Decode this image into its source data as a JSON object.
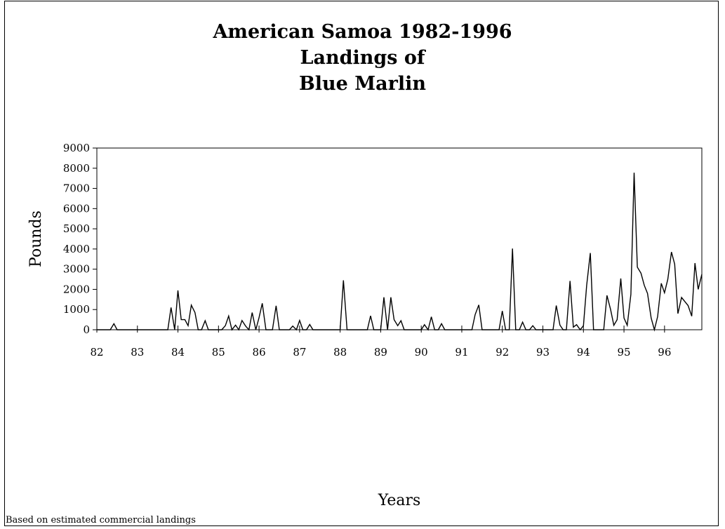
{
  "chart_data": {
    "type": "line",
    "title": [
      "American Samoa 1982-1996",
      "Landings of",
      "Blue Marlin"
    ],
    "xlabel": "Years",
    "ylabel": "Pounds",
    "xlim": [
      82,
      96.92
    ],
    "ylim": [
      0,
      9000
    ],
    "x_ticks": [
      "82",
      "83",
      "84",
      "85",
      "86",
      "87",
      "88",
      "89",
      "90",
      "91",
      "92",
      "93",
      "94",
      "95",
      "96"
    ],
    "y_ticks": [
      "0",
      "1000",
      "2000",
      "3000",
      "4000",
      "5000",
      "6000",
      "7000",
      "8000",
      "9000"
    ],
    "grid": false,
    "legend": "none",
    "line_color": "#000000",
    "series": [
      {
        "x": [
          82.0,
          82.08,
          82.17,
          82.25,
          82.33,
          82.42,
          82.5,
          82.58,
          82.67,
          82.75,
          82.83,
          82.92,
          83.0,
          83.08,
          83.17,
          83.25,
          83.33,
          83.42,
          83.5,
          83.58,
          83.67,
          83.75,
          83.83,
          83.92,
          84.0,
          84.08,
          84.17,
          84.25,
          84.33,
          84.42,
          84.5,
          84.58,
          84.67,
          84.75,
          84.83,
          84.92,
          85.0,
          85.08,
          85.17,
          85.25,
          85.33,
          85.42,
          85.5,
          85.58,
          85.67,
          85.75,
          85.83,
          85.92,
          86.0,
          86.08,
          86.17,
          86.25,
          86.33,
          86.42,
          86.5,
          86.58,
          86.67,
          86.75,
          86.83,
          86.92,
          87.0,
          87.08,
          87.17,
          87.25,
          87.33,
          87.42,
          87.5,
          87.58,
          87.67,
          87.75,
          87.83,
          87.92,
          88.0,
          88.08,
          88.17,
          88.25,
          88.33,
          88.42,
          88.5,
          88.58,
          88.67,
          88.75,
          88.83,
          88.92,
          89.0,
          89.08,
          89.17,
          89.25,
          89.33,
          89.42,
          89.5,
          89.58,
          89.67,
          89.75,
          89.83,
          89.92,
          90.0,
          90.08,
          90.17,
          90.25,
          90.33,
          90.42,
          90.5,
          90.58,
          90.67,
          90.75,
          90.83,
          90.92,
          91.0,
          91.08,
          91.17,
          91.25,
          91.33,
          91.42,
          91.5,
          91.58,
          91.67,
          91.75,
          91.83,
          91.92,
          92.0,
          92.08,
          92.17,
          92.25,
          92.33,
          92.42,
          92.5,
          92.58,
          92.67,
          92.75,
          92.83,
          92.92,
          93.0,
          93.08,
          93.17,
          93.25,
          93.33,
          93.42,
          93.5,
          93.58,
          93.67,
          93.75,
          93.83,
          93.92,
          94.0,
          94.08,
          94.17,
          94.25,
          94.33,
          94.42,
          94.5,
          94.58,
          94.67,
          94.75,
          94.83,
          94.92,
          95.0,
          95.08,
          95.17,
          95.25,
          95.33,
          95.42,
          95.5,
          95.58,
          95.67,
          95.75,
          95.83,
          95.92,
          96.0,
          96.08,
          96.17,
          96.25,
          96.33,
          96.42,
          96.5,
          96.58,
          96.67,
          96.75,
          96.83,
          96.92
        ],
        "y": [
          0,
          0,
          0,
          0,
          0,
          300,
          0,
          0,
          0,
          0,
          0,
          0,
          0,
          0,
          0,
          0,
          0,
          0,
          0,
          0,
          0,
          0,
          1100,
          0,
          1950,
          500,
          500,
          200,
          1220,
          850,
          0,
          0,
          450,
          0,
          0,
          0,
          0,
          0,
          200,
          680,
          0,
          230,
          0,
          460,
          180,
          0,
          850,
          0,
          600,
          1310,
          0,
          0,
          0,
          1190,
          0,
          0,
          0,
          0,
          180,
          0,
          460,
          0,
          0,
          260,
          0,
          0,
          0,
          0,
          0,
          0,
          0,
          0,
          0,
          2450,
          0,
          0,
          0,
          0,
          0,
          0,
          0,
          690,
          0,
          0,
          0,
          1610,
          0,
          1610,
          500,
          200,
          450,
          0,
          0,
          0,
          0,
          0,
          0,
          250,
          0,
          640,
          0,
          0,
          300,
          0,
          0,
          0,
          0,
          0,
          0,
          0,
          0,
          0,
          750,
          1230,
          0,
          0,
          0,
          0,
          0,
          0,
          930,
          0,
          0,
          4020,
          0,
          0,
          380,
          0,
          0,
          200,
          0,
          0,
          0,
          0,
          0,
          0,
          1200,
          230,
          0,
          0,
          2420,
          130,
          250,
          0,
          200,
          2200,
          3800,
          0,
          0,
          0,
          0,
          1700,
          1000,
          220,
          500,
          2540,
          580,
          220,
          1750,
          7780,
          3100,
          2800,
          2200,
          1800,
          580,
          0,
          650,
          2300,
          1830,
          2500,
          3850,
          3250,
          800,
          1600,
          1400,
          1200,
          670,
          3300,
          2000,
          2750
        ]
      }
    ]
  },
  "footnote": "Based on estimated commercial landings"
}
